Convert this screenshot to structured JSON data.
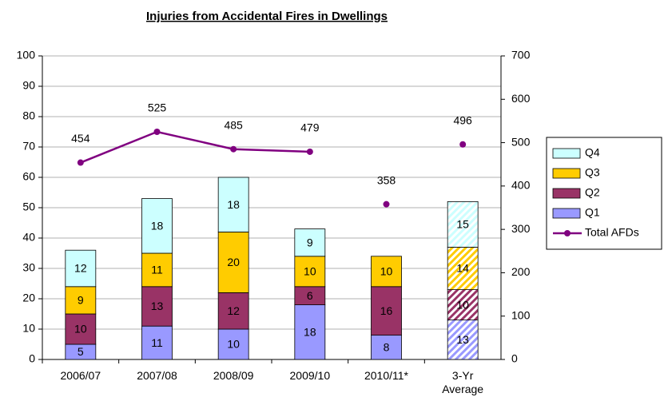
{
  "chart_data": {
    "type": "stacked-bar-line",
    "title": "Injuries from Accidental Fires in Dwellings",
    "categories": [
      "2006/07",
      "2007/08",
      "2008/09",
      "2009/10",
      "2010/11*",
      "3-Yr Average"
    ],
    "series": [
      {
        "name": "Q1",
        "color": "#9999ff",
        "values": [
          5,
          11,
          10,
          18,
          8,
          13
        ]
      },
      {
        "name": "Q2",
        "color": "#993366",
        "values": [
          10,
          13,
          12,
          6,
          16,
          10
        ]
      },
      {
        "name": "Q3",
        "color": "#ffcc00",
        "values": [
          9,
          11,
          20,
          10,
          10,
          14
        ]
      },
      {
        "name": "Q4",
        "color": "#ccffff",
        "values": [
          12,
          18,
          18,
          9,
          null,
          15
        ]
      },
      {
        "name": "Total AFDs",
        "color": "#800080",
        "axis": "y2",
        "type": "line",
        "values": [
          454,
          525,
          485,
          479,
          358,
          496
        ],
        "connected": [
          true,
          true,
          true,
          true,
          false,
          false
        ]
      }
    ],
    "hatched": [
      false,
      false,
      false,
      false,
      false,
      true
    ],
    "ylim": [
      0,
      100
    ],
    "yticks": [
      0,
      10,
      20,
      30,
      40,
      50,
      60,
      70,
      80,
      90,
      100
    ],
    "y2lim": [
      0,
      700
    ],
    "y2ticks": [
      0,
      100,
      200,
      300,
      400,
      500,
      600,
      700
    ],
    "grid": true,
    "legend": "right"
  }
}
